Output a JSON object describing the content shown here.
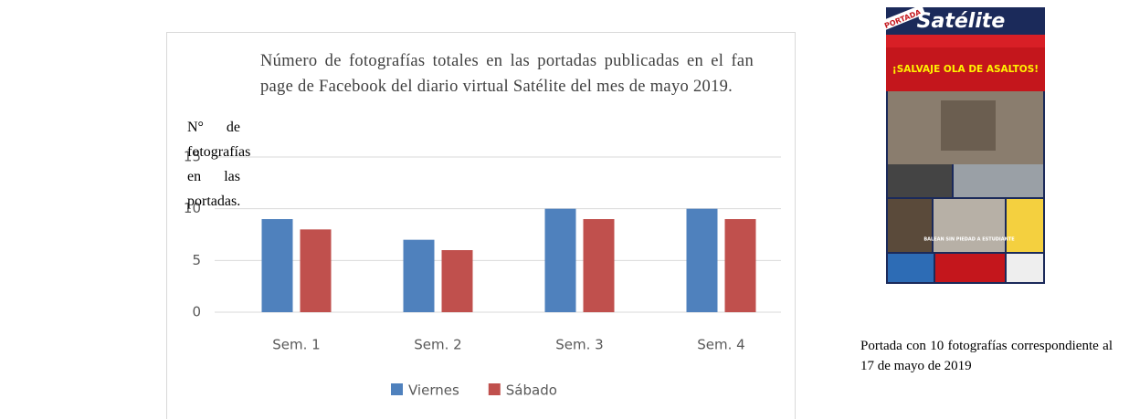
{
  "side_label": "N° de fotografías en las portadas.",
  "chart_data": {
    "type": "bar",
    "title": "Número de fotografías totales en las portadas publicadas en el fan page de Facebook del diario virtual Satélite del mes de mayo 2019.",
    "categories": [
      "Sem. 1",
      "Sem. 2",
      "Sem. 3",
      "Sem. 4"
    ],
    "series": [
      {
        "name": "Viernes",
        "color": "#4f81bd",
        "values": [
          9,
          7,
          10,
          10
        ]
      },
      {
        "name": "Sábado",
        "color": "#c0504d",
        "values": [
          8,
          6,
          9,
          9
        ]
      }
    ],
    "ylim": [
      0,
      15
    ],
    "yticks": [
      0,
      5,
      10,
      15
    ],
    "grid": true,
    "legend": "bottom"
  },
  "cover": {
    "badge": "PORTADA",
    "masthead": "Satélite",
    "headline": "¡SALVAJE OLA DE ASALTOS!",
    "subhead": "BALEAN SIN PIEDAD A ESTUDIANTE"
  },
  "caption": "Portada con 10 fotografías correspondiente al 17 de mayo de 2019"
}
